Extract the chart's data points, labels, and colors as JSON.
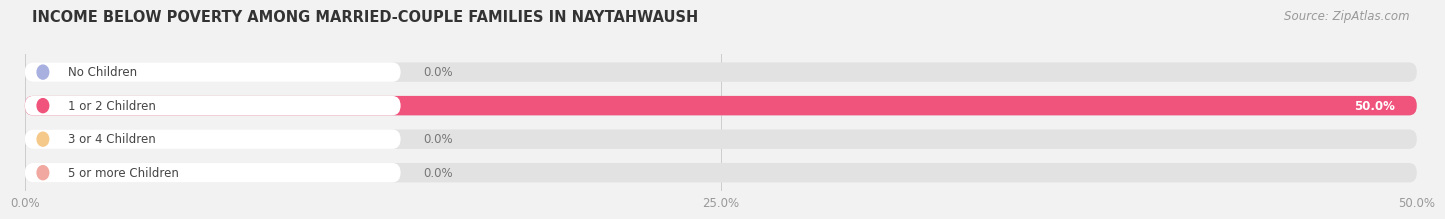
{
  "title": "INCOME BELOW POVERTY AMONG MARRIED-COUPLE FAMILIES IN NAYTAHWAUSH",
  "source": "Source: ZipAtlas.com",
  "categories": [
    "No Children",
    "1 or 2 Children",
    "3 or 4 Children",
    "5 or more Children"
  ],
  "values": [
    0.0,
    50.0,
    0.0,
    0.0
  ],
  "bar_colors": [
    "#a8b0e0",
    "#f0547c",
    "#f5c98a",
    "#f0a8a0"
  ],
  "background_color": "#f2f2f2",
  "bar_bg_color": "#e2e2e2",
  "xlim": [
    0,
    50
  ],
  "xticks": [
    0,
    25,
    50
  ],
  "xticklabels": [
    "0.0%",
    "25.0%",
    "50.0%"
  ],
  "title_fontsize": 10.5,
  "source_fontsize": 8.5,
  "bar_label_fontsize": 8.5,
  "xtick_fontsize": 8.5,
  "pill_label_fontsize": 8.5
}
